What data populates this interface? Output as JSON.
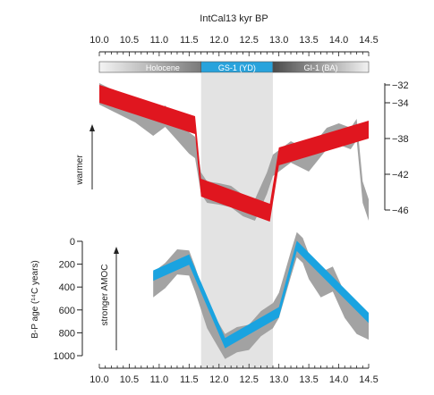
{
  "chart_data": [
    {
      "type": "line",
      "panel": "top",
      "title": "IntCal13 kyr BP",
      "x_ticks": [
        10.0,
        10.5,
        11.0,
        11.5,
        12.0,
        12.5,
        13.0,
        13.5,
        14.0,
        14.5
      ],
      "xlim": [
        10.0,
        14.5
      ],
      "x_reversed": false,
      "ylabel": "warmer",
      "y_ticks": [
        -32,
        -34,
        -38,
        -42,
        -46
      ],
      "ylim": [
        -46,
        -32
      ],
      "y_axis_side": "right",
      "shaded_interval": [
        11.7,
        12.9
      ],
      "periods": [
        {
          "label": "Holocene",
          "start": 10.0,
          "end": 11.7
        },
        {
          "label": "GS-1 (YD)",
          "start": 11.7,
          "end": 12.9
        },
        {
          "label": "GI-1 (BA)",
          "start": 12.9,
          "end": 14.5
        }
      ],
      "series": [
        {
          "role": "record (grey envelope)",
          "color": "#9e9e9e",
          "x": [
            10.0,
            10.3,
            10.6,
            10.9,
            11.1,
            11.3,
            11.5,
            11.6,
            11.7,
            11.8,
            12.0,
            12.2,
            12.4,
            12.6,
            12.8,
            12.9,
            13.0,
            13.2,
            13.5,
            13.8,
            14.0,
            14.2,
            14.3,
            14.4,
            14.5
          ],
          "y": [
            -33.0,
            -34.0,
            -35.0,
            -36.5,
            -35.5,
            -37.0,
            -38.5,
            -39.0,
            -43.0,
            -44.0,
            -44.2,
            -44.5,
            -45.5,
            -46.0,
            -43.0,
            -41.0,
            -40.5,
            -39.5,
            -40.5,
            -38.0,
            -37.5,
            -38.0,
            -37.0,
            -44.0,
            -46.0
          ],
          "spread": 1.2
        },
        {
          "role": "piecewise-linear fit",
          "color": "#e0161f",
          "x": [
            10.0,
            11.6,
            11.7,
            12.85,
            13.0,
            14.5
          ],
          "y": [
            -33.0,
            -36.5,
            -43.5,
            -46.3,
            -40.0,
            -37.0
          ],
          "band_width": 1.0
        }
      ]
    },
    {
      "type": "line",
      "panel": "bottom",
      "x_ticks": [
        10.0,
        10.5,
        11.0,
        11.5,
        12.0,
        12.5,
        13.0,
        13.5,
        14.0,
        14.5
      ],
      "xlim": [
        10.0,
        14.5
      ],
      "ylabel": "B-P age (14C years)",
      "ylabel_text": "B-P age (¹⁴C years)",
      "direction_label": "stronger AMOC",
      "y_ticks": [
        0,
        200,
        400,
        600,
        800,
        1000
      ],
      "ylim": [
        0,
        1000
      ],
      "y_reversed": true,
      "series": [
        {
          "role": "record (grey envelope)",
          "color": "#9e9e9e",
          "x": [
            10.9,
            11.1,
            11.3,
            11.5,
            11.6,
            11.8,
            12.0,
            12.1,
            12.3,
            12.5,
            12.7,
            12.9,
            13.0,
            13.2,
            13.3,
            13.4,
            13.5,
            13.7,
            13.9,
            14.1,
            14.3,
            14.5
          ],
          "y": [
            380,
            300,
            180,
            190,
            330,
            650,
            830,
            920,
            860,
            840,
            720,
            650,
            560,
            200,
            30,
            80,
            220,
            380,
            330,
            560,
            700,
            750
          ],
          "spread": 110
        },
        {
          "role": "piecewise-linear fit",
          "color": "#1aa3e0",
          "x": [
            10.9,
            11.5,
            12.1,
            13.0,
            13.3,
            14.5
          ],
          "y": [
            300,
            160,
            890,
            620,
            40,
            670
          ],
          "band_width": 45
        }
      ]
    }
  ]
}
